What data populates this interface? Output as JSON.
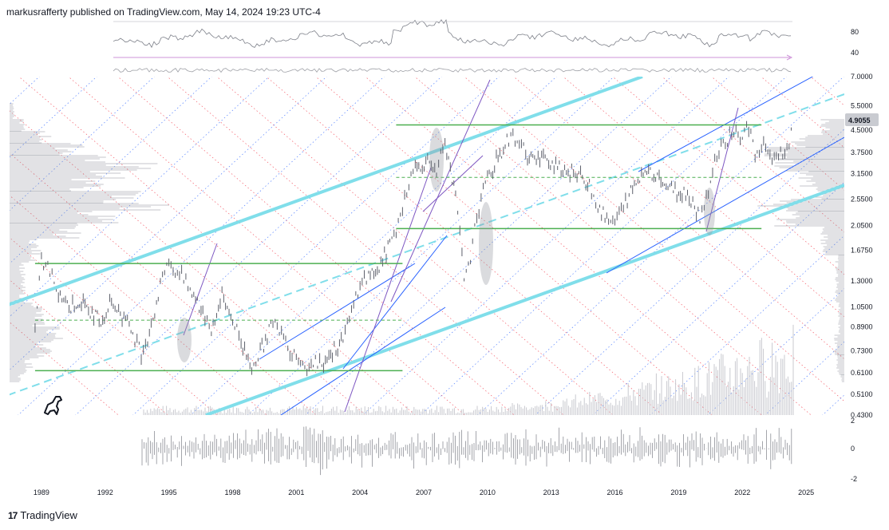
{
  "header": {
    "text": "markusrafferty published on TradingView.com, May 14, 2024 19:23 UTC-4"
  },
  "footer": {
    "brand": "TradingView",
    "logo_glyph": "17"
  },
  "colors": {
    "candle": "#5d606b",
    "support": "#4caf50",
    "channel_cyan": "#80deea",
    "channel_blue": "#2962ff",
    "fan_red": "#f23645",
    "fan_blue": "#2962ff",
    "trend_purple": "#7e57c2",
    "volume": "#c8c9cf",
    "profile": "#9598a1",
    "last_price_bg": "#c9cbd1"
  },
  "chart_data": {
    "type": "candlestick",
    "scale": "log",
    "last_price": "4.9055",
    "price_ticks": [
      "7.0000",
      "5.5000",
      "4.5000",
      "3.7500",
      "3.1500",
      "2.5500",
      "2.0500",
      "1.6750",
      "1.3000",
      "1.0500",
      "0.8900",
      "0.7300",
      "0.6100",
      "0.5100",
      "0.4300"
    ],
    "price_values": [
      7.0,
      5.5,
      4.5,
      3.75,
      3.15,
      2.55,
      2.05,
      1.675,
      1.3,
      1.05,
      0.89,
      0.73,
      0.61,
      0.51,
      0.43
    ],
    "ylim": [
      0.43,
      7.0
    ],
    "years": [
      "1989",
      "1992",
      "1995",
      "1998",
      "2001",
      "2004",
      "2007",
      "2010",
      "2013",
      "2016",
      "2019",
      "2022",
      "2025"
    ],
    "year_values": [
      1989,
      1992,
      1995,
      1998,
      2001,
      2004,
      2007,
      2010,
      2013,
      2016,
      2019,
      2022,
      2025
    ],
    "xlim": [
      1987.5,
      2026.8
    ],
    "indicator_ticks": [
      "80",
      "40"
    ],
    "oscillator_ticks": [
      "2",
      "0",
      "-2"
    ],
    "series": [
      {
        "x": [
          1988.7,
          1989.0,
          1989.4,
          1989.8,
          1990.3,
          1990.8,
          1991.3,
          1991.8,
          1992.3,
          1992.8,
          1993.3,
          1993.7,
          1994.0,
          1994.5,
          1994.9,
          1995.2,
          1995.6,
          1996.0,
          1996.6,
          1997.0,
          1997.5,
          1998.0,
          1998.4,
          1998.9,
          1999.3,
          1999.8,
          2000.2,
          2000.6,
          2001.0,
          2001.4,
          2001.8,
          2002.2,
          2002.7,
          2003.2,
          2003.6,
          2004.0,
          2004.4,
          2004.9,
          2005.4,
          2005.8,
          2006.2,
          2006.6,
          2007.1,
          2007.6,
          2008.0,
          2008.5,
          2008.9,
          2009.2,
          2009.6,
          2010.0,
          2010.5,
          2011.0,
          2011.4,
          2011.8,
          2012.3,
          2012.8,
          2013.3,
          2013.8,
          2014.3,
          2014.8,
          2015.2,
          2015.7,
          2016.1,
          2016.5,
          2017.0,
          2017.5,
          2018.0,
          2018.5,
          2019.0,
          2019.5,
          2020.0,
          2020.3,
          2020.7,
          2021.1,
          2021.5,
          2021.9,
          2022.3,
          2022.6,
          2023.0,
          2023.4,
          2023.8,
          2024.1,
          2024.4
        ],
        "y": [
          0.87,
          1.55,
          1.4,
          1.2,
          1.05,
          1.1,
          1.0,
          0.95,
          1.1,
          0.98,
          0.85,
          0.72,
          0.82,
          1.15,
          1.55,
          1.45,
          1.35,
          1.2,
          1.0,
          0.88,
          1.15,
          0.95,
          0.78,
          0.65,
          0.72,
          0.9,
          0.88,
          0.75,
          0.72,
          0.64,
          0.68,
          0.66,
          0.72,
          0.8,
          1.0,
          1.3,
          1.35,
          1.45,
          1.75,
          2.1,
          2.8,
          3.3,
          3.5,
          3.3,
          3.9,
          2.6,
          1.35,
          1.6,
          2.4,
          3.0,
          3.6,
          4.2,
          4.25,
          3.7,
          3.5,
          3.55,
          3.4,
          3.2,
          3.1,
          2.9,
          2.4,
          2.1,
          2.15,
          2.5,
          2.9,
          3.3,
          3.1,
          2.8,
          2.7,
          2.65,
          2.2,
          2.6,
          3.5,
          4.0,
          4.5,
          4.3,
          4.6,
          3.7,
          3.9,
          3.6,
          3.7,
          3.8,
          4.9
        ]
      }
    ],
    "support_levels": [
      {
        "value": 1.5,
        "from": 1988.7,
        "to": 2006.0
      },
      {
        "value": 0.62,
        "from": 1988.7,
        "to": 2006.0
      },
      {
        "value": 4.7,
        "from": 2005.7,
        "to": 2022.9
      },
      {
        "value": 2.0,
        "from": 2005.7,
        "to": 2022.9
      }
    ],
    "dashed_levels": [
      {
        "value": 0.94,
        "from": 1988.7,
        "to": 2006.0
      },
      {
        "value": 3.05,
        "from": 2005.7,
        "to": 2022.9
      }
    ]
  }
}
